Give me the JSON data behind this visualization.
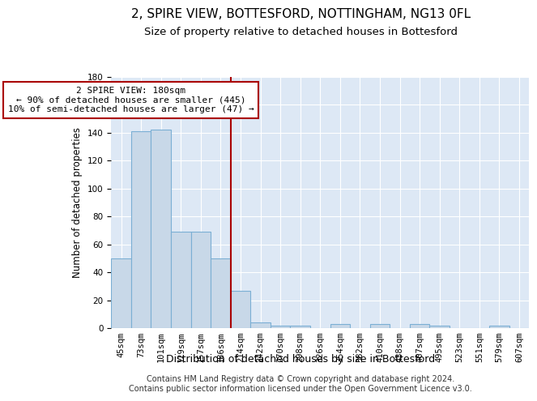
{
  "title": "2, SPIRE VIEW, BOTTESFORD, NOTTINGHAM, NG13 0FL",
  "subtitle": "Size of property relative to detached houses in Bottesford",
  "xlabel": "Distribution of detached houses by size in Bottesford",
  "ylabel": "Number of detached properties",
  "bar_labels": [
    "45sqm",
    "73sqm",
    "101sqm",
    "129sqm",
    "157sqm",
    "186sqm",
    "214sqm",
    "242sqm",
    "270sqm",
    "298sqm",
    "326sqm",
    "354sqm",
    "382sqm",
    "410sqm",
    "438sqm",
    "467sqm",
    "495sqm",
    "523sqm",
    "551sqm",
    "579sqm",
    "607sqm"
  ],
  "bar_values": [
    50,
    141,
    142,
    69,
    69,
    50,
    27,
    4,
    2,
    2,
    0,
    3,
    0,
    3,
    0,
    3,
    2,
    0,
    0,
    2,
    0
  ],
  "bar_color": "#c8d8e8",
  "bar_edge_color": "#7bafd4",
  "vline_x": 5.5,
  "vline_color": "#aa0000",
  "annotation_text": "2 SPIRE VIEW: 180sqm\n← 90% of detached houses are smaller (445)\n10% of semi-detached houses are larger (47) →",
  "annotation_box_color": "#ffffff",
  "annotation_box_edge": "#aa0000",
  "ylim": [
    0,
    180
  ],
  "yticks": [
    0,
    20,
    40,
    60,
    80,
    100,
    120,
    140,
    160,
    180
  ],
  "footer": "Contains HM Land Registry data © Crown copyright and database right 2024.\nContains public sector information licensed under the Open Government Licence v3.0.",
  "background_color": "#dde8f5",
  "title_fontsize": 11,
  "subtitle_fontsize": 9.5,
  "xlabel_fontsize": 9,
  "ylabel_fontsize": 8.5,
  "tick_fontsize": 7.5,
  "footer_fontsize": 7,
  "annotation_fontsize": 8
}
